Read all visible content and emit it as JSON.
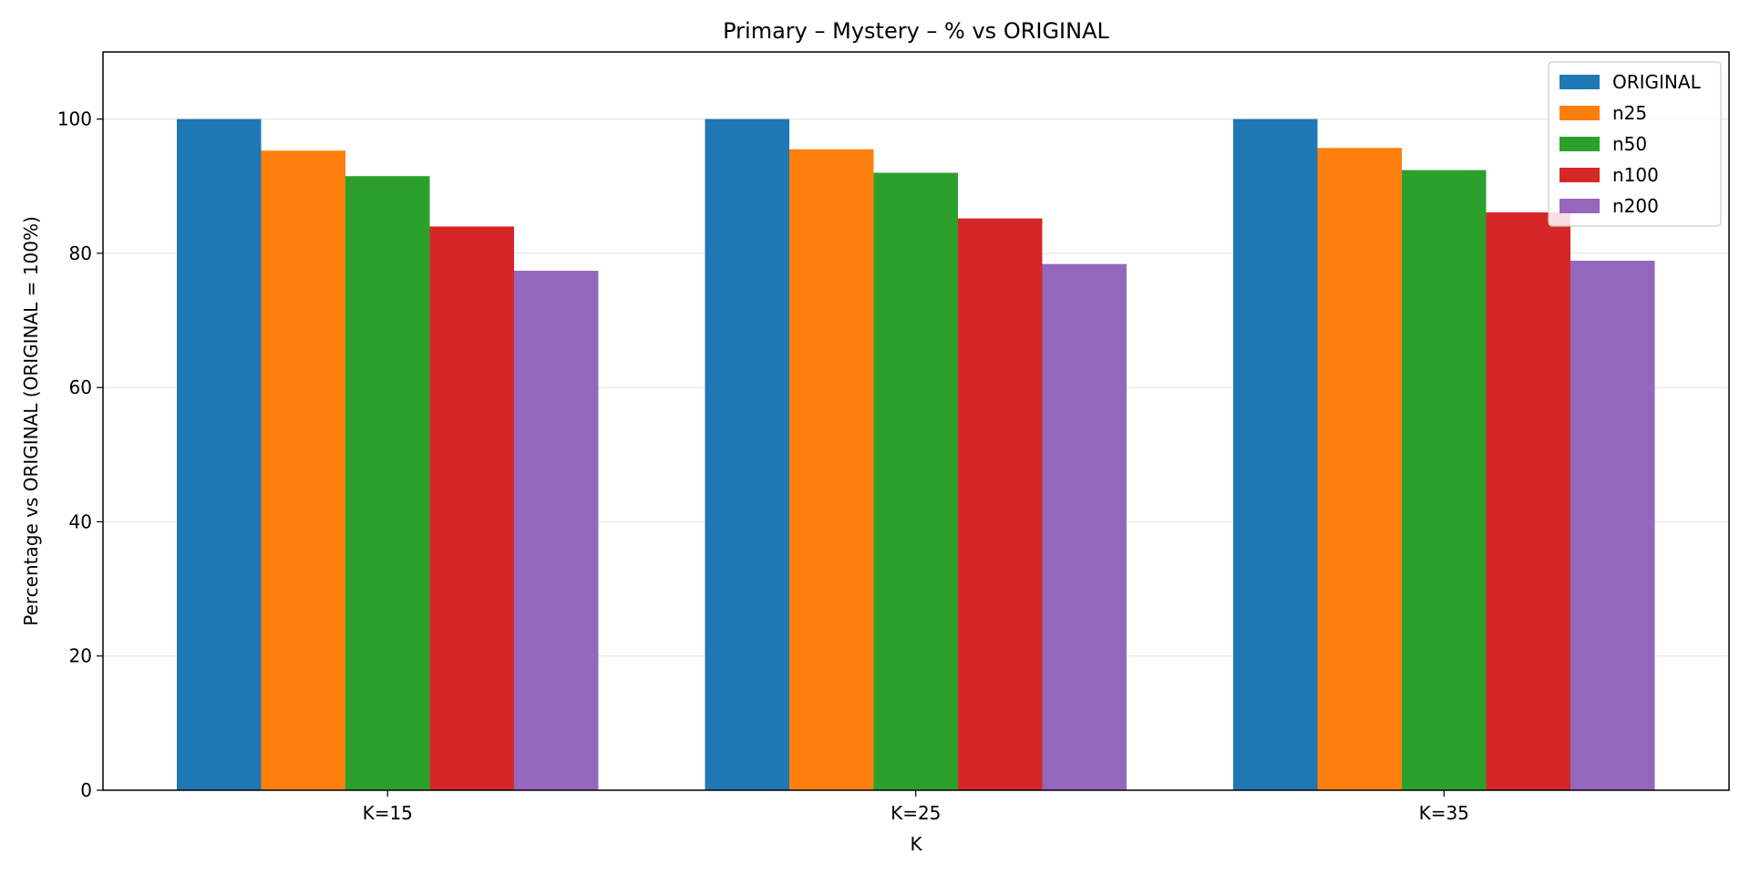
{
  "chart_data": {
    "type": "bar",
    "title": "Primary – Mystery – % vs ORIGINAL",
    "xlabel": "K",
    "ylabel": "Percentage vs ORIGINAL (ORIGINAL = 100%)",
    "categories": [
      "K=15",
      "K=25",
      "K=35"
    ],
    "ylim": [
      0,
      110
    ],
    "yticks": [
      0,
      20,
      40,
      60,
      80,
      100
    ],
    "grid": "y",
    "legend_position": "top-right",
    "series": [
      {
        "name": "ORIGINAL",
        "color": "#1f77b4",
        "values": [
          100,
          100,
          100
        ]
      },
      {
        "name": "n25",
        "color": "#ff7f0e",
        "values": [
          95.3,
          95.5,
          95.7
        ]
      },
      {
        "name": "n50",
        "color": "#2ca02c",
        "values": [
          91.5,
          92.0,
          92.4
        ]
      },
      {
        "name": "n100",
        "color": "#d62728",
        "values": [
          84.0,
          85.2,
          86.1
        ]
      },
      {
        "name": "n200",
        "color": "#9467bd",
        "values": [
          77.4,
          78.4,
          78.9
        ]
      }
    ]
  }
}
